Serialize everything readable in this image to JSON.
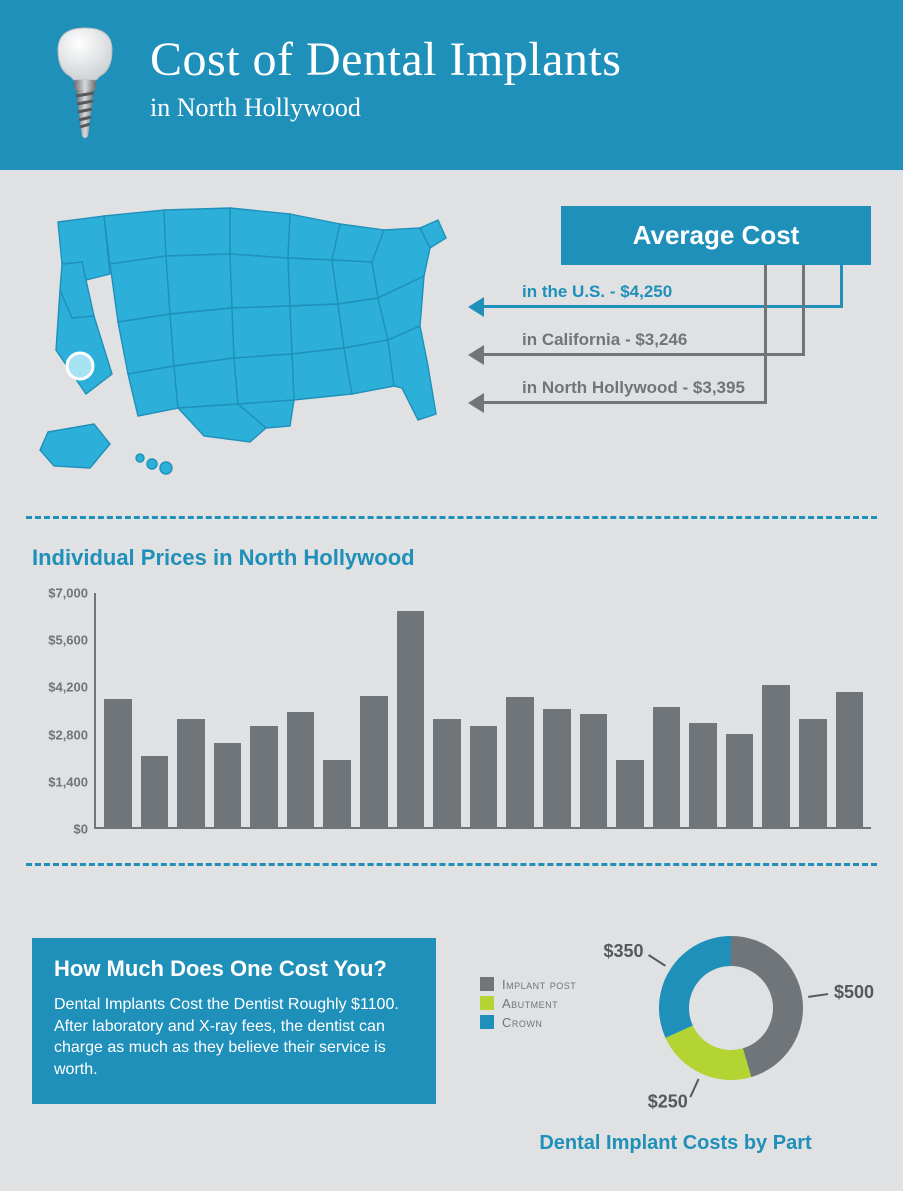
{
  "header": {
    "title": "Cost of Dental Implants",
    "subtitle": "in North Hollywood"
  },
  "map": {
    "fill_color": "#2cb0d9",
    "stroke_color": "#1f90b9",
    "highlight_color": "#a7e3f2",
    "background": "#e0e1e2"
  },
  "average_cost": {
    "title": "Average Cost",
    "box_bg": "#1f90b9",
    "box_text_color": "#ffffff",
    "rows": [
      {
        "label": "in the U.S.",
        "value": "$4,250",
        "color": "#1f90b9"
      },
      {
        "label": "in California",
        "value": "$3,246",
        "color": "#707579"
      },
      {
        "label": "in North Hollywood",
        "value": "$3,395",
        "color": "#707579"
      }
    ]
  },
  "bar_chart": {
    "title": "Individual Prices in North Hollywood",
    "title_color": "#1f90b9",
    "bar_color": "#707579",
    "axis_color": "#707579",
    "y_min": 0,
    "y_max": 7000,
    "y_tick_step": 1400,
    "y_tick_labels": [
      "$0",
      "$1,400",
      "$2,800",
      "$4,200",
      "$5,600",
      "$7,000"
    ],
    "values": [
      3800,
      2100,
      3200,
      2500,
      3000,
      3400,
      2000,
      3900,
      6400,
      3200,
      3000,
      3850,
      3500,
      3350,
      2000,
      3550,
      3100,
      2750,
      4200,
      3200,
      4000
    ]
  },
  "cost_box": {
    "title": "How Much Does One Cost You?",
    "body": "Dental Implants Cost the Dentist Roughly $1100. After laboratory and X-ray fees, the dentist can charge as much as they believe their service is worth.",
    "bg": "#1f90b9",
    "text_color": "#ffffff"
  },
  "donut": {
    "title": "Dental Implant Costs by Part",
    "title_color": "#1f90b9",
    "hole_color": "#e0e1e2",
    "label_color": "#55595c",
    "parts": [
      {
        "name": "Implant post",
        "value": 500,
        "label": "$500",
        "color": "#707579"
      },
      {
        "name": "Abutment",
        "value": 250,
        "label": "$250",
        "color": "#b3d433"
      },
      {
        "name": "Crown",
        "value": 350,
        "label": "$350",
        "color": "#1f90b9"
      }
    ]
  },
  "divider_color": "#1f90b9"
}
